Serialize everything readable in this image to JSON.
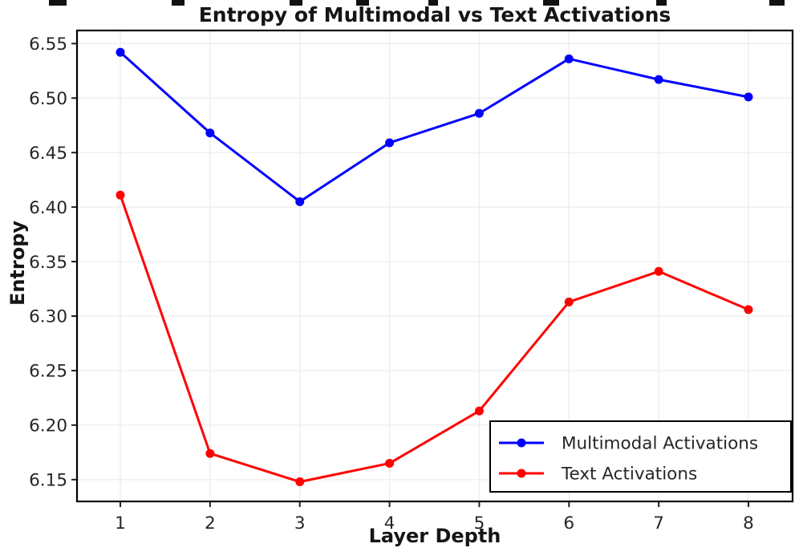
{
  "chart_data": {
    "type": "line",
    "title": "Entropy of Multimodal vs Text Activations",
    "xlabel": "Layer Depth",
    "ylabel": "Entropy",
    "x": [
      1,
      2,
      3,
      4,
      5,
      6,
      7,
      8
    ],
    "series": [
      {
        "name": "Multimodal Activations",
        "color": "#0000ff",
        "values": [
          6.542,
          6.468,
          6.405,
          6.459,
          6.486,
          6.536,
          6.517,
          6.501
        ]
      },
      {
        "name": "Text Activations",
        "color": "#ff0000",
        "values": [
          6.411,
          6.174,
          6.148,
          6.165,
          6.213,
          6.313,
          6.341,
          6.306
        ]
      }
    ],
    "xticks": [
      1,
      2,
      3,
      4,
      5,
      6,
      7,
      8
    ],
    "xtick_labels": [
      "1",
      "2",
      "3",
      "4",
      "5",
      "6",
      "7",
      "8"
    ],
    "yticks": [
      6.15,
      6.2,
      6.25,
      6.3,
      6.35,
      6.4,
      6.45,
      6.5,
      6.55
    ],
    "ytick_labels": [
      "6.15",
      "6.20",
      "6.25",
      "6.30",
      "6.35",
      "6.40",
      "6.45",
      "6.50",
      "6.55"
    ],
    "xlim": [
      0.517,
      8.492
    ],
    "ylim": [
      6.13,
      6.562
    ],
    "grid": true,
    "legend_position": "lower right",
    "colors": {
      "frame": "#000000",
      "grid": "#f0eded",
      "text": "#262626",
      "background": "#ffffff"
    }
  }
}
